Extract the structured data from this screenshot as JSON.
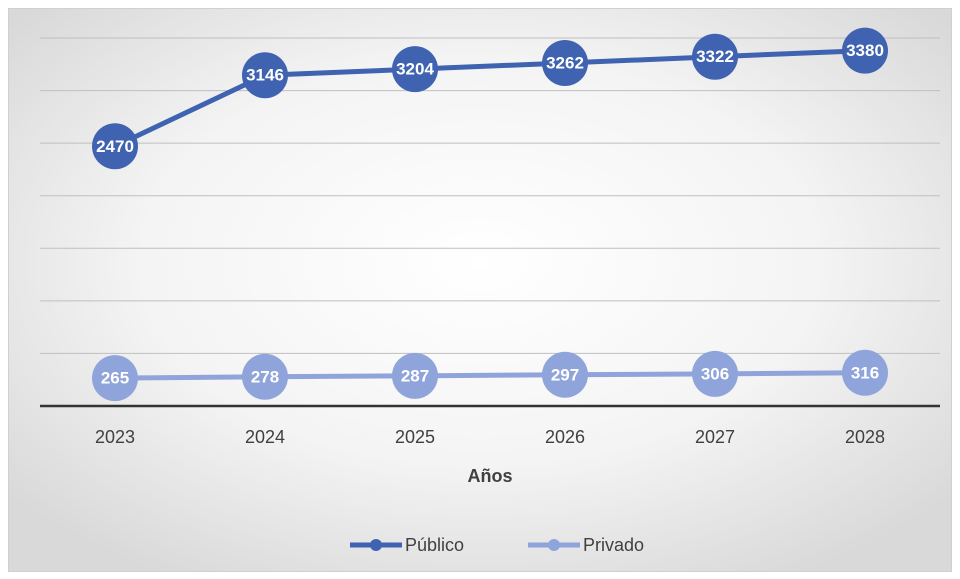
{
  "chart_data": {
    "type": "line",
    "x_label": "Años",
    "categories": [
      "2023",
      "2024",
      "2025",
      "2026",
      "2027",
      "2028"
    ],
    "series": [
      {
        "name": "Público",
        "color": "#3f63b0",
        "values": [
          2470,
          3146,
          3204,
          3262,
          3322,
          3380
        ]
      },
      {
        "name": "Privado",
        "color": "#8fa4da",
        "values": [
          265,
          278,
          287,
          297,
          306,
          316
        ]
      }
    ],
    "ylim": [
      0,
      3500
    ],
    "yticks": [
      0,
      500,
      1000,
      1500,
      2000,
      2500,
      3000,
      3500
    ],
    "grid": true,
    "legend": "bottom"
  }
}
